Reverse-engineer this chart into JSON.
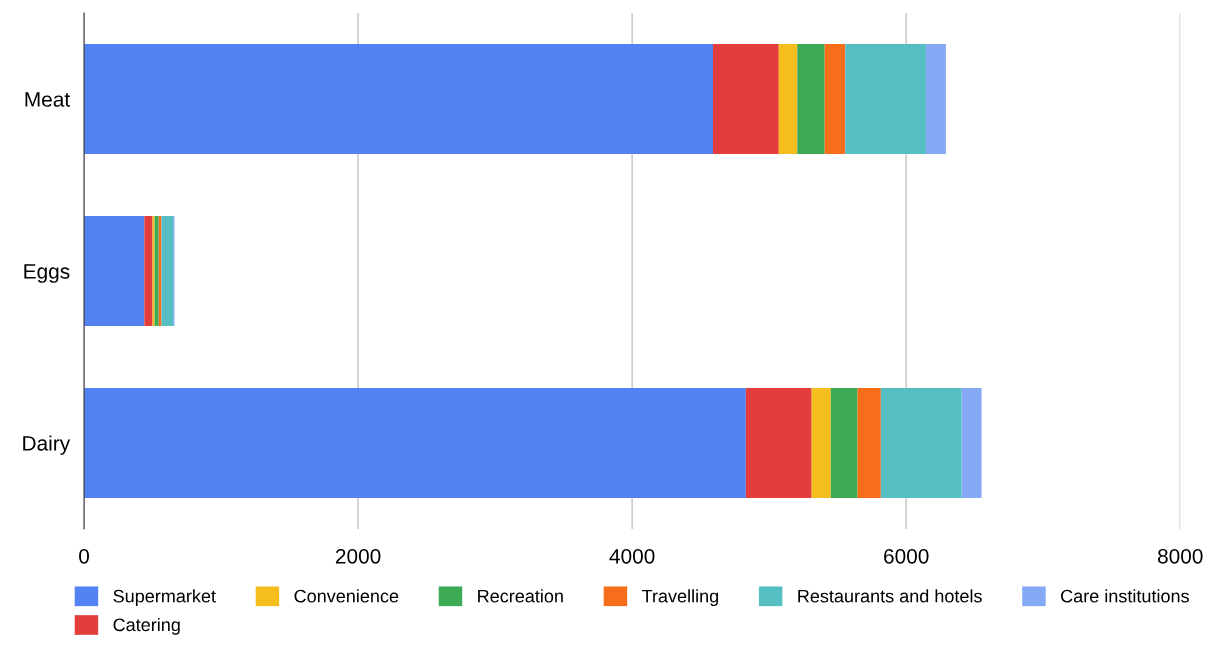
{
  "chart_data": {
    "type": "bar",
    "orientation": "horizontal",
    "stacked": true,
    "categories": [
      "Meat",
      "Eggs",
      "Dairy"
    ],
    "series": [
      {
        "name": "Supermarket",
        "color": "#5383f2",
        "values": [
          4590,
          440,
          4830
        ]
      },
      {
        "name": "Catering",
        "color": "#e33e3b",
        "values": [
          480,
          60,
          480
        ]
      },
      {
        "name": "Convenience",
        "color": "#f6bd1f",
        "values": [
          135,
          15,
          140
        ]
      },
      {
        "name": "Recreation",
        "color": "#3daa55",
        "values": [
          200,
          30,
          195
        ]
      },
      {
        "name": "Travelling",
        "color": "#f66d1a",
        "values": [
          150,
          20,
          170
        ]
      },
      {
        "name": "Restaurants and hotels",
        "color": "#56bfc4",
        "values": [
          590,
          85,
          590
        ]
      },
      {
        "name": "Care institutions",
        "color": "#85a9f5",
        "values": [
          145,
          10,
          145
        ]
      }
    ],
    "xlim": [
      0,
      8000
    ],
    "xticks": [
      0,
      2000,
      4000,
      6000,
      8000
    ],
    "grid": "x",
    "legend": "bottom"
  }
}
